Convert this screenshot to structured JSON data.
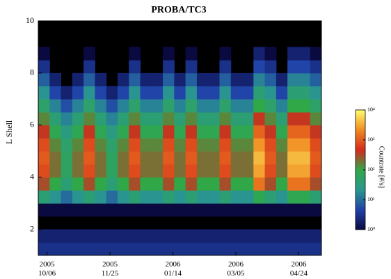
{
  "chart_data": {
    "type": "heatmap",
    "title": "PROBA/TC3",
    "ylabel": "L Shell",
    "colorbar_label": "Countrate [#/s]",
    "x_bins": [
      "2005-09-29",
      "2005-10-08",
      "2005-10-17",
      "2005-10-26",
      "2005-11-04",
      "2005-11-13",
      "2005-11-22",
      "2005-12-01",
      "2005-12-10",
      "2005-12-19",
      "2005-12-28",
      "2006-01-06",
      "2006-01-15",
      "2006-01-24",
      "2006-02-02",
      "2006-02-11",
      "2006-02-20",
      "2006-03-01",
      "2006-03-10",
      "2006-03-19",
      "2006-03-28",
      "2006-04-06",
      "2006-04-15",
      "2006-04-24",
      "2006-05-03",
      "2006-05-12"
    ],
    "y_bins": [
      1,
      1.5,
      2,
      2.5,
      3,
      3.5,
      4,
      4.5,
      5,
      5.5,
      6,
      6.5,
      7,
      7.5,
      8,
      8.5,
      9,
      9.5,
      10
    ],
    "values": [
      [
        3,
        3,
        3,
        3,
        3,
        3,
        3,
        3,
        3,
        3,
        3,
        3,
        3,
        3,
        3,
        3,
        3,
        3,
        3,
        3,
        3,
        3,
        3,
        3,
        3
      ],
      [
        2,
        2,
        2,
        2,
        2,
        2,
        2,
        2,
        2,
        2,
        2,
        2,
        2,
        2,
        2,
        2,
        2,
        2,
        2,
        2,
        2,
        2,
        2,
        2,
        2
      ],
      [
        null,
        null,
        null,
        null,
        null,
        null,
        null,
        null,
        null,
        null,
        null,
        null,
        null,
        null,
        null,
        null,
        null,
        null,
        null,
        null,
        null,
        null,
        null,
        null,
        null
      ],
      [
        1,
        1,
        1,
        1,
        1,
        1,
        1,
        1,
        1,
        1,
        1,
        1,
        1,
        1,
        1,
        1,
        1,
        1,
        1,
        1,
        1,
        1,
        1,
        1,
        1
      ],
      [
        40,
        20,
        10,
        20,
        40,
        20,
        10,
        20,
        40,
        20,
        20,
        40,
        20,
        40,
        20,
        20,
        40,
        20,
        20,
        80,
        40,
        20,
        80,
        80,
        40
      ],
      [
        300,
        100,
        40,
        100,
        300,
        100,
        40,
        100,
        300,
        100,
        100,
        300,
        100,
        300,
        100,
        100,
        300,
        100,
        100,
        1500,
        300,
        100,
        1500,
        1500,
        300
      ],
      [
        800,
        200,
        60,
        200,
        800,
        200,
        60,
        200,
        800,
        200,
        200,
        800,
        200,
        800,
        200,
        200,
        800,
        200,
        200,
        3000,
        800,
        200,
        3000,
        3000,
        800
      ],
      [
        1000,
        200,
        60,
        200,
        1000,
        200,
        60,
        200,
        1000,
        200,
        200,
        1000,
        200,
        1000,
        200,
        200,
        1000,
        200,
        200,
        4000,
        1000,
        200,
        4000,
        4000,
        1000
      ],
      [
        800,
        150,
        50,
        150,
        800,
        150,
        50,
        150,
        800,
        150,
        150,
        800,
        150,
        800,
        150,
        150,
        800,
        150,
        150,
        2500,
        800,
        150,
        2500,
        2500,
        800
      ],
      [
        400,
        80,
        30,
        80,
        400,
        80,
        30,
        80,
        400,
        80,
        80,
        400,
        80,
        400,
        80,
        80,
        400,
        80,
        80,
        1200,
        400,
        80,
        1200,
        1200,
        400
      ],
      [
        150,
        40,
        15,
        40,
        150,
        40,
        15,
        40,
        150,
        40,
        40,
        150,
        40,
        150,
        40,
        40,
        150,
        40,
        40,
        400,
        150,
        40,
        400,
        400,
        150
      ],
      [
        50,
        15,
        6,
        15,
        50,
        15,
        6,
        15,
        50,
        15,
        15,
        50,
        15,
        50,
        15,
        15,
        50,
        15,
        15,
        100,
        50,
        15,
        100,
        100,
        50
      ],
      [
        20,
        5,
        2,
        5,
        20,
        5,
        2,
        5,
        20,
        5,
        5,
        20,
        5,
        20,
        5,
        5,
        20,
        5,
        5,
        40,
        20,
        5,
        40,
        40,
        20
      ],
      [
        8,
        2,
        null,
        2,
        8,
        2,
        null,
        2,
        8,
        2,
        2,
        8,
        2,
        8,
        2,
        2,
        8,
        2,
        2,
        15,
        8,
        2,
        15,
        15,
        8
      ],
      [
        3,
        null,
        null,
        null,
        3,
        null,
        null,
        null,
        3,
        null,
        null,
        3,
        null,
        3,
        null,
        null,
        3,
        null,
        null,
        5,
        3,
        null,
        5,
        5,
        3
      ],
      [
        1,
        null,
        null,
        null,
        1,
        null,
        null,
        null,
        1,
        null,
        null,
        1,
        null,
        1,
        null,
        null,
        1,
        null,
        null,
        2,
        1,
        null,
        2,
        2,
        1
      ],
      [
        null,
        null,
        null,
        null,
        null,
        null,
        null,
        null,
        null,
        null,
        null,
        null,
        null,
        null,
        null,
        null,
        null,
        null,
        null,
        null,
        null,
        null,
        null,
        null,
        null
      ],
      [
        null,
        null,
        null,
        null,
        null,
        null,
        null,
        null,
        null,
        null,
        null,
        null,
        null,
        null,
        null,
        null,
        null,
        null,
        null,
        null,
        null,
        null,
        null,
        null,
        null
      ]
    ],
    "xlim": [
      "2005-09-29",
      "2006-05-12"
    ],
    "xticks": [
      {
        "value": "2005-10-06",
        "label": "2005\n10/06"
      },
      {
        "value": "2005-11-25",
        "label": "2005\n11/25"
      },
      {
        "value": "2006-01-14",
        "label": "2006\n01/14"
      },
      {
        "value": "2006-03-05",
        "label": "2006\n03/05"
      },
      {
        "value": "2006-04-24",
        "label": "2006\n04/24"
      }
    ],
    "ylim": [
      1,
      10
    ],
    "yticks": [
      2,
      4,
      6,
      8,
      10
    ],
    "zlim": [
      1,
      10000
    ],
    "zscale": "log",
    "zticks": [
      {
        "value": 1,
        "label": "10⁰"
      },
      {
        "value": 10,
        "label": "10¹"
      },
      {
        "value": 100,
        "label": "10²"
      },
      {
        "value": 1000,
        "label": "10³"
      },
      {
        "value": 10000,
        "label": "10⁴"
      }
    ],
    "colorscale": [
      "#0a0a40",
      "#2040a8",
      "#2a9890",
      "#30a848",
      "#d42a1c",
      "#f08a20",
      "#ffff70"
    ],
    "background": "#000000"
  }
}
